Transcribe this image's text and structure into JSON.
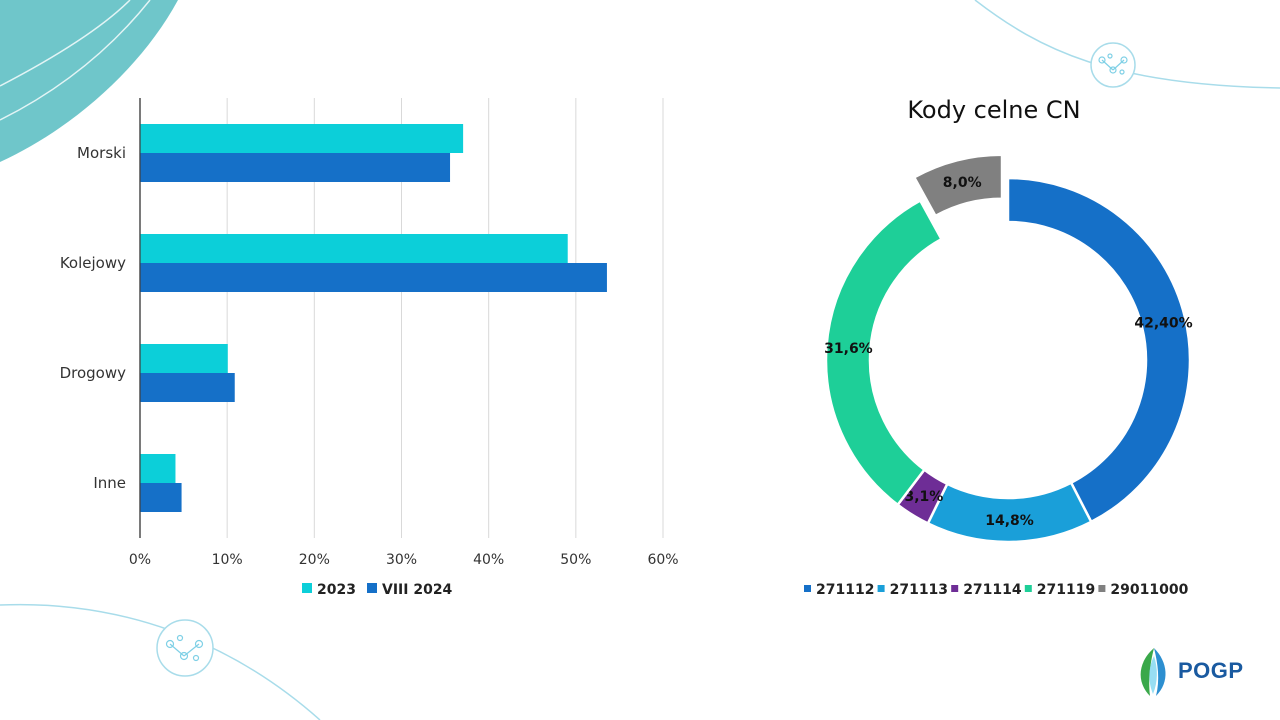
{
  "brand": {
    "logo_text": "POGP",
    "accent": "#1a5aa0"
  },
  "chart_data": [
    {
      "type": "bar",
      "orientation": "horizontal",
      "title": "",
      "categories": [
        "Morski",
        "Kolejowy",
        "Drogowy",
        "Inne"
      ],
      "series": [
        {
          "name": "2023",
          "color": "#0ccfd9",
          "values": [
            37,
            49,
            10,
            4
          ]
        },
        {
          "name": "VIII 2024",
          "color": "#1570c8",
          "values": [
            35.5,
            53.5,
            10.8,
            4.7
          ]
        }
      ],
      "xlim": [
        0,
        60
      ],
      "xticks": [
        "0%",
        "10%",
        "20%",
        "30%",
        "40%",
        "50%",
        "60%"
      ],
      "grid": true,
      "legend_position": "bottom"
    },
    {
      "type": "pie",
      "title": "Kody celne CN",
      "style": "donut",
      "slices": [
        {
          "name": "271112",
          "value": 42.4,
          "label": "42,40%",
          "color": "#1570c8"
        },
        {
          "name": "271113",
          "value": 14.8,
          "label": "14,8%",
          "color": "#1a9fd9"
        },
        {
          "name": "271114",
          "value": 3.1,
          "label": "3,1%",
          "color": "#6e2d96"
        },
        {
          "name": "271119",
          "value": 31.6,
          "label": "31,6%",
          "color": "#1ecf98"
        },
        {
          "name": "29011000",
          "value": 8.0,
          "label": "8,0%",
          "color": "#808080"
        }
      ],
      "legend_position": "bottom"
    }
  ]
}
